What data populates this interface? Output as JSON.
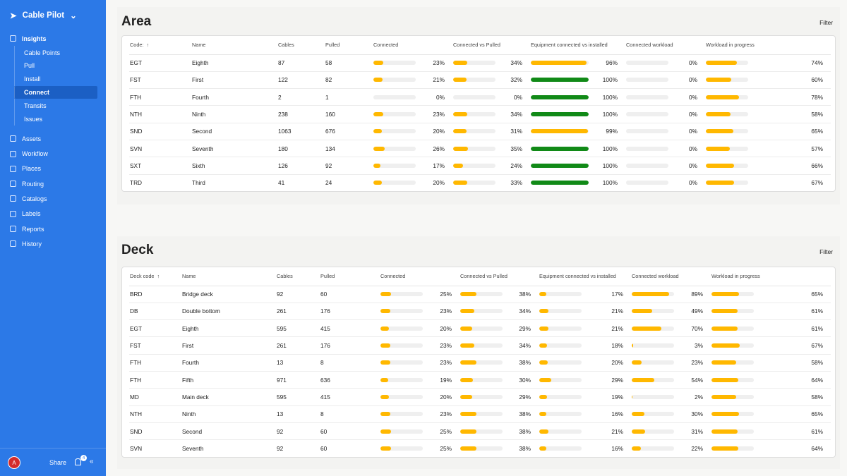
{
  "sidebar": {
    "brand": "Cable Pilot",
    "section": "Insights",
    "sub_items": [
      "Cable Points",
      "Pull",
      "Install",
      "Connect",
      "Transits",
      "Issues"
    ],
    "active": "Connect",
    "items": [
      "Assets",
      "Workflow",
      "Places",
      "Routing",
      "Catalogs",
      "Labels",
      "Reports",
      "History"
    ],
    "avatar": "A",
    "share": "Share",
    "notifications": "4"
  },
  "scale": [
    0,
    100
  ],
  "bar_color": "#ffb800",
  "full_color": "#118a17",
  "track_color": "#efefef",
  "tables": [
    {
      "title": "Area",
      "filter": "Filter",
      "columns": [
        "Code:",
        "Name",
        "Cables",
        "Pulled",
        "Connected",
        "Connected vs Pulled",
        "Equipment connected vs installed",
        "Connected workload",
        "Workload in progress"
      ],
      "rows": [
        [
          "EGT",
          "Eighth",
          87,
          58,
          {
            "value": 23,
            "label": "23%"
          },
          {
            "value": 34,
            "label": "34%"
          },
          {
            "value": 96,
            "label": "96%"
          },
          {
            "value": 0,
            "label": "0%"
          },
          {
            "value": 74,
            "label": "74%"
          }
        ],
        [
          "FST",
          "First",
          122,
          82,
          {
            "value": 21,
            "label": "21%"
          },
          {
            "value": 32,
            "label": "32%"
          },
          {
            "value": 100,
            "label": "100%"
          },
          {
            "value": 0,
            "label": "0%"
          },
          {
            "value": 60,
            "label": "60%"
          }
        ],
        [
          "FTH",
          "Fourth",
          2,
          1,
          {
            "value": 0,
            "label": "0%"
          },
          {
            "value": 0,
            "label": "0%"
          },
          {
            "value": 100,
            "label": "100%"
          },
          {
            "value": 0,
            "label": "0%"
          },
          {
            "value": 78,
            "label": "78%"
          }
        ],
        [
          "NTH",
          "Ninth",
          238,
          160,
          {
            "value": 23,
            "label": "23%"
          },
          {
            "value": 34,
            "label": "34%"
          },
          {
            "value": 100,
            "label": "100%"
          },
          {
            "value": 0,
            "label": "0%"
          },
          {
            "value": 58,
            "label": "58%"
          }
        ],
        [
          "SND",
          "Second",
          1063,
          676,
          {
            "value": 20,
            "label": "20%"
          },
          {
            "value": 31,
            "label": "31%"
          },
          {
            "value": 99,
            "label": "99%"
          },
          {
            "value": 0,
            "label": "0%"
          },
          {
            "value": 65,
            "label": "65%"
          }
        ],
        [
          "SVN",
          "Seventh",
          180,
          134,
          {
            "value": 26,
            "label": "26%"
          },
          {
            "value": 35,
            "label": "35%"
          },
          {
            "value": 100,
            "label": "100%"
          },
          {
            "value": 0,
            "label": "0%"
          },
          {
            "value": 57,
            "label": "57%"
          }
        ],
        [
          "SXT",
          "Sixth",
          126,
          92,
          {
            "value": 17,
            "label": "17%"
          },
          {
            "value": 24,
            "label": "24%"
          },
          {
            "value": 100,
            "label": "100%"
          },
          {
            "value": 0,
            "label": "0%"
          },
          {
            "value": 66,
            "label": "66%"
          }
        ],
        [
          "TRD",
          "Third",
          41,
          24,
          {
            "value": 20,
            "label": "20%"
          },
          {
            "value": 33,
            "label": "33%"
          },
          {
            "value": 100,
            "label": "100%"
          },
          {
            "value": 0,
            "label": "0%"
          },
          {
            "value": 67,
            "label": "67%"
          }
        ]
      ]
    },
    {
      "title": "Deck",
      "filter": "Filter",
      "columns": [
        "Deck code",
        "Name",
        "Cables",
        "Pulled",
        "Connected",
        "Connected vs Pulled",
        "Equipment connected vs installed",
        "Connected workload",
        "Workload in progress"
      ],
      "rows": [
        [
          "BRD",
          "Bridge deck",
          92,
          60,
          {
            "value": 25,
            "label": "25%"
          },
          {
            "value": 38,
            "label": "38%"
          },
          {
            "value": 17,
            "label": "17%"
          },
          {
            "value": 89,
            "label": "89%"
          },
          {
            "value": 65,
            "label": "65%"
          }
        ],
        [
          "DB",
          "Double bottom",
          261,
          176,
          {
            "value": 23,
            "label": "23%"
          },
          {
            "value": 34,
            "label": "34%"
          },
          {
            "value": 21,
            "label": "21%"
          },
          {
            "value": 49,
            "label": "49%"
          },
          {
            "value": 61,
            "label": "61%"
          }
        ],
        [
          "EGT",
          "Eighth",
          595,
          415,
          {
            "value": 20,
            "label": "20%"
          },
          {
            "value": 29,
            "label": "29%"
          },
          {
            "value": 21,
            "label": "21%"
          },
          {
            "value": 70,
            "label": "70%"
          },
          {
            "value": 61,
            "label": "61%"
          }
        ],
        [
          "FST",
          "First",
          261,
          176,
          {
            "value": 23,
            "label": "23%"
          },
          {
            "value": 34,
            "label": "34%"
          },
          {
            "value": 18,
            "label": "18%"
          },
          {
            "value": 3,
            "label": "3%"
          },
          {
            "value": 67,
            "label": "67%"
          }
        ],
        [
          "FTH",
          "Fourth",
          13,
          8,
          {
            "value": 23,
            "label": "23%"
          },
          {
            "value": 38,
            "label": "38%"
          },
          {
            "value": 20,
            "label": "20%"
          },
          {
            "value": 23,
            "label": "23%"
          },
          {
            "value": 58,
            "label": "58%"
          }
        ],
        [
          "FTH",
          "Fifth",
          971,
          636,
          {
            "value": 19,
            "label": "19%"
          },
          {
            "value": 30,
            "label": "30%"
          },
          {
            "value": 29,
            "label": "29%"
          },
          {
            "value": 54,
            "label": "54%"
          },
          {
            "value": 64,
            "label": "64%"
          }
        ],
        [
          "MD",
          "Main deck",
          595,
          415,
          {
            "value": 20,
            "label": "20%"
          },
          {
            "value": 29,
            "label": "29%"
          },
          {
            "value": 19,
            "label": "19%"
          },
          {
            "value": 2,
            "label": "2%"
          },
          {
            "value": 58,
            "label": "58%"
          }
        ],
        [
          "NTH",
          "Ninth",
          13,
          8,
          {
            "value": 23,
            "label": "23%"
          },
          {
            "value": 38,
            "label": "38%"
          },
          {
            "value": 16,
            "label": "16%"
          },
          {
            "value": 30,
            "label": "30%"
          },
          {
            "value": 65,
            "label": "65%"
          }
        ],
        [
          "SND",
          "Second",
          92,
          60,
          {
            "value": 25,
            "label": "25%"
          },
          {
            "value": 38,
            "label": "38%"
          },
          {
            "value": 21,
            "label": "21%"
          },
          {
            "value": 31,
            "label": "31%"
          },
          {
            "value": 61,
            "label": "61%"
          }
        ],
        [
          "SVN",
          "Seventh",
          92,
          60,
          {
            "value": 25,
            "label": "25%"
          },
          {
            "value": 38,
            "label": "38%"
          },
          {
            "value": 16,
            "label": "16%"
          },
          {
            "value": 22,
            "label": "22%"
          },
          {
            "value": 64,
            "label": "64%"
          }
        ]
      ]
    }
  ]
}
